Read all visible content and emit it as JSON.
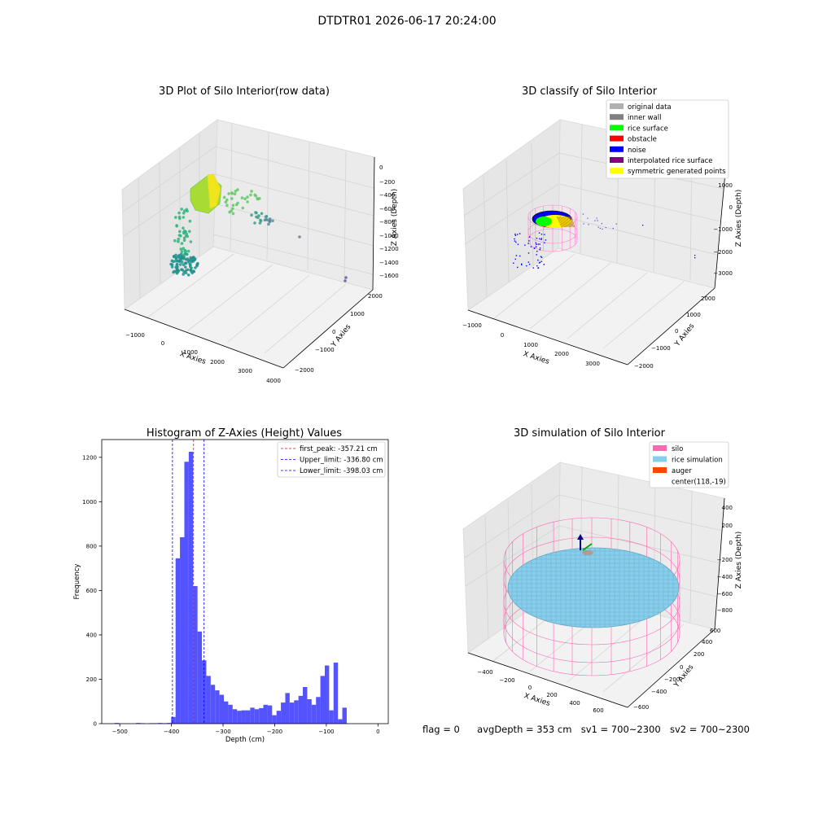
{
  "suptitle": "DTDTR01 2026-06-17 20:24:00",
  "footer": {
    "flag": "flag = 0",
    "avg": "avgDepth = 353 cm",
    "sv1": "sv1 = 700~2300",
    "sv2": "sv2 = 700~2300"
  },
  "chart_data": [
    {
      "type": "scatter",
      "projection": "3d",
      "title": "3D Plot of Silo Interior(row data)",
      "xlabel": "X Axies",
      "ylabel": "Y Axies",
      "zlabel": "Z Axies (Depth)",
      "xticks": [
        "−1000",
        "0",
        "1000",
        "2000",
        "3000",
        "4000"
      ],
      "yticks": [
        "−2000",
        "−1000",
        "0",
        "1000",
        "2000"
      ],
      "zticks": [
        "0",
        "−200",
        "−400",
        "−600",
        "−800",
        "−1000",
        "−1200",
        "−1400",
        "−1600"
      ],
      "xlim": [
        -1300,
        4000
      ],
      "ylim": [
        -2200,
        2200
      ],
      "zlim": [
        -1700,
        50
      ],
      "colormap": "viridis",
      "grid": true
    },
    {
      "type": "scatter",
      "projection": "3d",
      "title": "3D classify of Silo Interior",
      "xlabel": "X Axies",
      "ylabel": "Y Axies",
      "zlabel": "Z Axies (Depth)",
      "xticks": [
        "−1000",
        "0",
        "1000",
        "2000",
        "3000"
      ],
      "yticks": [
        "−2000",
        "−1000",
        "0",
        "1000",
        "2000"
      ],
      "zticks": [
        "1000",
        "0",
        "−1000",
        "−2000",
        "−3000"
      ],
      "legend_position": "top-right",
      "legend": [
        {
          "label": "original data",
          "color": "#b0b0b0"
        },
        {
          "label": "inner wall",
          "color": "#808080"
        },
        {
          "label": "rice surface",
          "color": "#00ff00"
        },
        {
          "label": "obstacle",
          "color": "#ff0000"
        },
        {
          "label": "noise",
          "color": "#0000ff"
        },
        {
          "label": "interpolated rice surface",
          "color": "#800080"
        },
        {
          "label": "symmetric generated points",
          "color": "#ffff00"
        }
      ],
      "grid": true
    },
    {
      "type": "bar",
      "title": "Histogram of Z-Axies (Height) Values",
      "xlabel": "Depth (cm)",
      "ylabel": "Frequency",
      "xlim": [
        -535,
        20
      ],
      "ylim": [
        0,
        1280
      ],
      "xticks": [
        -500,
        -400,
        -300,
        -200,
        -100,
        0
      ],
      "yticks": [
        0,
        200,
        400,
        600,
        800,
        1000,
        1200
      ],
      "bin_width": 8.5,
      "bin_starts": [
        -510,
        -468.5,
        -460,
        -443,
        -434.5,
        -426,
        -417.5,
        -409,
        -400.5,
        -392,
        -383.5,
        -375,
        -366.5,
        -358,
        -349.5,
        -341,
        -332.5,
        -324,
        -315.5,
        -307,
        -298.5,
        -290,
        -281.5,
        -273,
        -264.5,
        -256,
        -247.5,
        -239,
        -230.5,
        -222,
        -213.5,
        -205,
        -196.5,
        -188,
        -179.5,
        -171,
        -162.5,
        -154,
        -145.5,
        -137,
        -128.5,
        -120,
        -111.5,
        -103,
        -94.5,
        -86,
        -77.5,
        -69,
        -60.5,
        -52,
        -43.5,
        -35,
        -26.5,
        -18,
        -9.5
      ],
      "values": [
        3,
        3,
        2,
        2,
        2,
        3,
        2,
        3,
        30,
        745,
        840,
        1180,
        1225,
        620,
        415,
        285,
        215,
        175,
        150,
        130,
        100,
        85,
        65,
        58,
        60,
        60,
        72,
        65,
        70,
        85,
        82,
        38,
        58,
        95,
        138,
        95,
        105,
        125,
        165,
        110,
        85,
        120,
        215,
        262,
        60,
        275,
        20,
        72,
        0,
        0,
        0,
        0,
        0,
        0,
        0
      ],
      "color": "#4d4dff",
      "vlines": [
        {
          "label": "first_peak: -357.21 cm",
          "x": -357.21,
          "color": "#ff0000"
        },
        {
          "label": "Upper_limit: -336.80 cm",
          "x": -336.8,
          "color": "#0000ff"
        },
        {
          "label": "Lower_limit: -398.03 cm",
          "x": -398.03,
          "color": "#0000ff"
        }
      ],
      "legend_position": "top-right",
      "grid": false
    },
    {
      "type": "surface",
      "projection": "3d",
      "title": "3D simulation of Silo Interior",
      "xlabel": "X Axies",
      "ylabel": "Y Axies",
      "zlabel": "Z Axies (Depth)",
      "xticks": [
        "−400",
        "−200",
        "0",
        "200",
        "400",
        "600"
      ],
      "yticks": [
        "−600",
        "−400",
        "−200",
        "0",
        "200",
        "400",
        "600"
      ],
      "zticks": [
        "400",
        "200",
        "0",
        "−200",
        "−400",
        "−600",
        "−800"
      ],
      "legend_position": "top-right",
      "legend": [
        {
          "label": "silo",
          "color": "#ff69b4"
        },
        {
          "label": "rice simulation",
          "color": "#87ceeb"
        },
        {
          "label": "auger",
          "color": "#ff4500"
        },
        {
          "label": "center(118,-19)",
          "color": ""
        }
      ],
      "grid": true
    }
  ]
}
